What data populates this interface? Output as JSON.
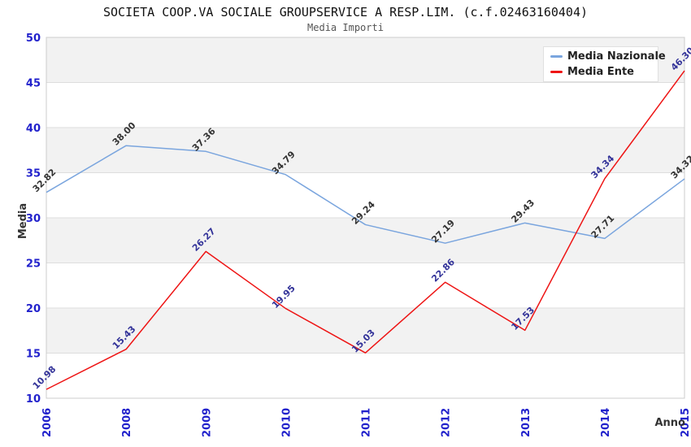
{
  "chart_data": {
    "type": "line",
    "title": "SOCIETA COOP.VA SOCIALE GROUPSERVICE A RESP.LIM. (c.f.02463160404)",
    "subtitle": "Media Importi",
    "xlabel": "Anno",
    "ylabel": "Media",
    "ylim": [
      10,
      50
    ],
    "ytick_step": 5,
    "grid": true,
    "legend_position": "top-right",
    "categories": [
      "2006",
      "2008",
      "2009",
      "2010",
      "2011",
      "2012",
      "2013",
      "2014",
      "2015"
    ],
    "series": [
      {
        "name": "Media Nazionale",
        "color": "#7AA5DE",
        "label_color": "#333333",
        "values": [
          32.82,
          38.0,
          37.36,
          34.79,
          29.24,
          27.19,
          29.43,
          27.71,
          34.32
        ]
      },
      {
        "name": "Media Ente",
        "color": "#EE1515",
        "label_color": "#333399",
        "values": [
          10.98,
          15.43,
          26.27,
          19.95,
          15.03,
          22.86,
          17.53,
          34.34,
          46.3
        ]
      }
    ],
    "colors": {
      "axis_label": "#2222CC",
      "gridline": "#DDDDDD",
      "plot_border": "#CCCCCC",
      "band_gray": "#F2F2F2",
      "band_white": "#FFFFFF"
    }
  }
}
